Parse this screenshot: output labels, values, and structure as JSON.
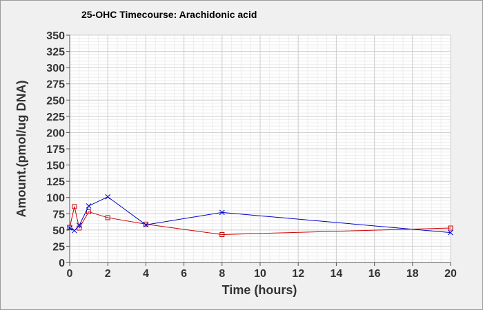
{
  "chart_data": {
    "type": "line",
    "title": "25-OHC Timecourse: Arachidonic acid",
    "xlabel": "Time (hours)",
    "ylabel": "Amount.(pmol/ug DNA)",
    "xlim": [
      0,
      20
    ],
    "ylim": [
      0,
      350
    ],
    "xticks": [
      0,
      2,
      4,
      6,
      8,
      10,
      12,
      14,
      16,
      18,
      20
    ],
    "yticks": [
      0,
      25,
      50,
      75,
      100,
      125,
      150,
      175,
      200,
      225,
      250,
      275,
      300,
      325,
      350
    ],
    "grid": true,
    "legend": "none",
    "series": [
      {
        "color": "#cc0000",
        "marker": "square",
        "x": [
          0,
          0.25,
          0.5,
          1,
          2,
          4,
          8,
          20
        ],
        "y": [
          54,
          86,
          53,
          78,
          69,
          59,
          43,
          53
        ]
      },
      {
        "color": "#0000cc",
        "marker": "x",
        "x": [
          0,
          0.25,
          0.5,
          1,
          2,
          4,
          8,
          20
        ],
        "y": [
          53,
          49,
          57,
          87,
          101,
          58,
          77,
          46
        ]
      }
    ]
  }
}
